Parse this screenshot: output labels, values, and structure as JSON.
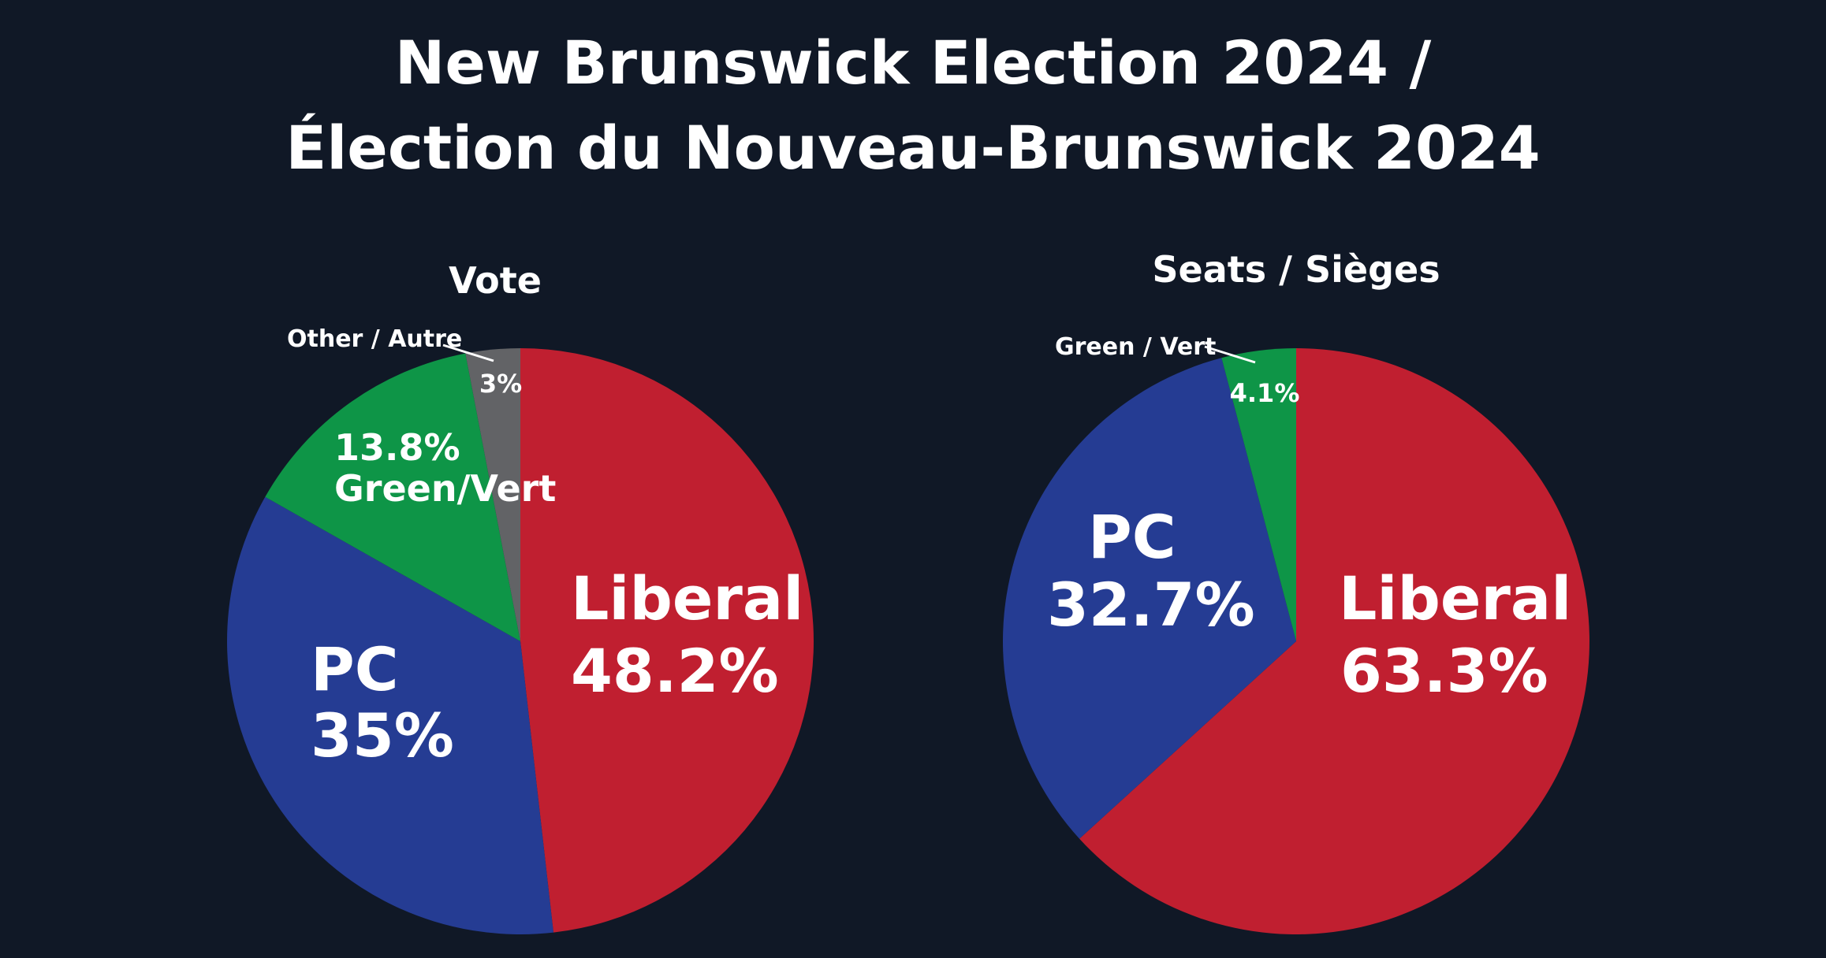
{
  "title_line1": "New Brunswick Election 2024 /",
  "title_line2": "Élection du Nouveau-Brunswick 2024",
  "colors": {
    "background": "#101826",
    "liberal": "#c01f30",
    "pc": "#253c93",
    "green": "#0e9547",
    "other": "#626366",
    "text": "#ffffff"
  },
  "chart_data": [
    {
      "type": "pie",
      "title": "Vote",
      "slices": [
        {
          "key": "liberal",
          "label": "Liberal",
          "value": 48.2,
          "value_label": "48.2%",
          "color": "#c01f30"
        },
        {
          "key": "pc",
          "label": "PC",
          "value": 35,
          "value_label": "35%",
          "color": "#253c93"
        },
        {
          "key": "green",
          "label": "Green/Vert",
          "value": 13.8,
          "value_label": "13.8%",
          "color": "#0e9547"
        },
        {
          "key": "other",
          "label": "Other / Autre",
          "value": 3,
          "value_label": "3%",
          "color": "#626366"
        }
      ]
    },
    {
      "type": "pie",
      "title": "Seats / Sièges",
      "slices": [
        {
          "key": "liberal",
          "label": "Liberal",
          "value": 63.3,
          "value_label": "63.3%",
          "color": "#c01f30"
        },
        {
          "key": "pc",
          "label": "PC",
          "value": 32.7,
          "value_label": "32.7%",
          "color": "#253c93"
        },
        {
          "key": "green",
          "label": "Green / Vert",
          "value": 4.1,
          "value_label": "4.1%",
          "color": "#0e9547"
        }
      ]
    }
  ]
}
